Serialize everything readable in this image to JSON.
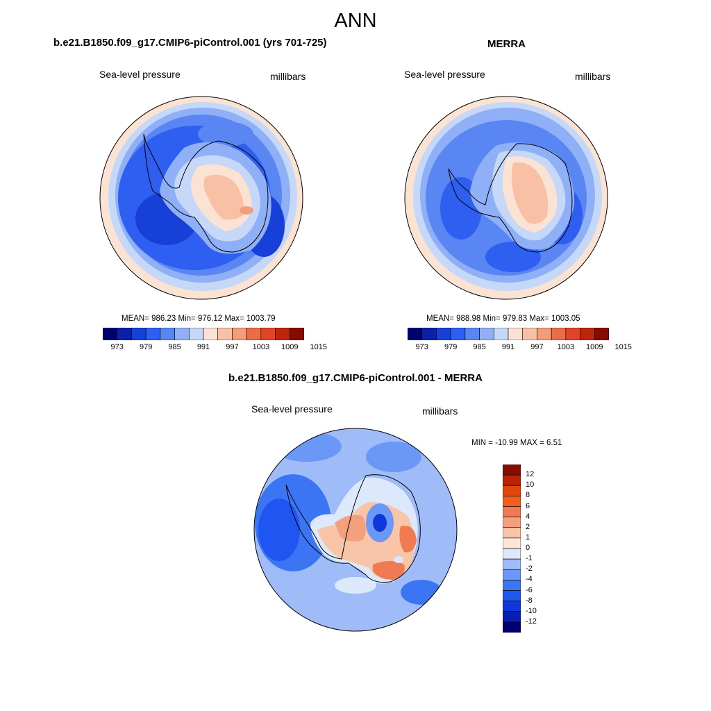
{
  "figure_title": "ANN",
  "colors": {
    "diverging_14": [
      "#00006e",
      "#0b1fa8",
      "#1740d8",
      "#2e5ff0",
      "#5a86f4",
      "#8fb0f6",
      "#c6d8f8",
      "#fbe3d3",
      "#f8c1a6",
      "#f49d7b",
      "#ec6c48",
      "#e14526",
      "#bf2609",
      "#860b02"
    ],
    "diff_15": [
      "#00006e",
      "#0520b0",
      "#1038d8",
      "#1f55f0",
      "#3c75f4",
      "#6b98f6",
      "#9fbbf8",
      "#dce8fb",
      "#fbe6d8",
      "#f8c5a8",
      "#f4a07c",
      "#f07a52",
      "#f35d1e",
      "#e0450d",
      "#b82205",
      "#860b02"
    ],
    "land_outline": "#000000"
  },
  "panels": [
    {
      "id": "model",
      "title": "b.e21.B1850.f09_g17.CMIP6-piControl.001 (yrs 701-725)",
      "left_label": "Sea-level pressure",
      "right_label": "millibars",
      "stats": "MEAN= 986.23  Min= 976.12  Max= 1003.79",
      "colorbar_ticks": [
        "973",
        "979",
        "985",
        "991",
        "997",
        "1003",
        "1009",
        "1015"
      ]
    },
    {
      "id": "obs",
      "title": "MERRA",
      "left_label": "Sea-level pressure",
      "right_label": "millibars",
      "stats": "MEAN= 988.98  Min= 979.83  Max= 1003.05",
      "colorbar_ticks": [
        "973",
        "979",
        "985",
        "991",
        "997",
        "1003",
        "1009",
        "1015"
      ]
    },
    {
      "id": "diff",
      "title": "b.e21.B1850.f09_g17.CMIP6-piControl.001 - MERRA",
      "left_label": "Sea-level pressure",
      "right_label": "millibars",
      "stats": "MIN = -10.99 MAX =   6.51",
      "colorbar_ticks": [
        "12",
        "10",
        "8",
        "6",
        "4",
        "2",
        "1",
        "0",
        "-1",
        "-2",
        "-4",
        "-6",
        "-8",
        "-10",
        "-12"
      ]
    }
  ],
  "map_data": {
    "projection": "south-polar stereographic",
    "variable": "Sea-level pressure",
    "units": "millibars",
    "season": "ANN",
    "model_stats": {
      "mean": 986.23,
      "min": 976.12,
      "max": 1003.79
    },
    "obs_stats": {
      "mean": 988.98,
      "min": 979.83,
      "max": 1003.05
    },
    "diff_stats": {
      "min": -10.99,
      "max": 6.51
    },
    "abs_contour_levels": [
      973,
      976,
      979,
      982,
      985,
      988,
      991,
      994,
      997,
      1000,
      1003,
      1006,
      1009,
      1012,
      1015
    ],
    "diff_contour_levels": [
      -12,
      -10,
      -8,
      -6,
      -4,
      -2,
      -1,
      0,
      1,
      2,
      4,
      6,
      8,
      10,
      12
    ]
  }
}
